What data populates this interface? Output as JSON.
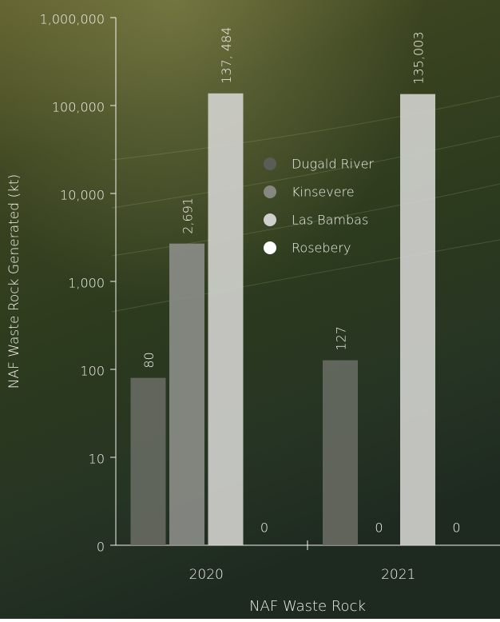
{
  "chart_data": {
    "type": "bar",
    "x_label": "NAF Waste Rock",
    "y_label": "NAF Waste Rock Generated (kt)",
    "categories": [
      "2020",
      "2021"
    ],
    "series": [
      {
        "name": "Dugald River",
        "color": "#676a62",
        "legend_color": "#5a5d56",
        "values": [
          80,
          127
        ],
        "value_labels": [
          "80",
          "127"
        ]
      },
      {
        "name": "Kinsevere",
        "color": "#8c8e88",
        "legend_color": "#86887f",
        "values": [
          2691,
          0
        ],
        "value_labels": [
          "2,691",
          "0"
        ]
      },
      {
        "name": "Las Bambas",
        "color": "#d3d3cf",
        "legend_color": "#cfcfcb",
        "values": [
          137484,
          135003
        ],
        "value_labels": [
          "137, 484",
          "135,003"
        ]
      },
      {
        "name": "Rosebery",
        "color": "#ffffff",
        "legend_color": "#ffffff",
        "values": [
          0,
          0
        ],
        "value_labels": [
          "0",
          "0"
        ]
      }
    ],
    "yscale": "symlog",
    "ylim": [
      0,
      1000000
    ],
    "yticks": [
      0,
      10,
      100,
      {
        "value": 1000,
        "label": "1,000"
      },
      {
        "value": 10000,
        "label": "10,000"
      },
      {
        "value": 100000,
        "label": "100,000"
      },
      {
        "value": 1000000,
        "label": "1,000,000"
      }
    ],
    "grid": false
  }
}
